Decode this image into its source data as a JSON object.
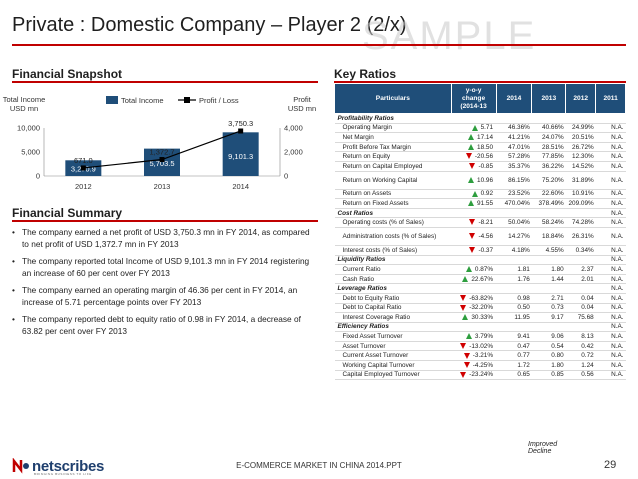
{
  "title": "Private : Domestic Company – Player 2 (2/x)",
  "watermark": "SAMPLE",
  "sections": {
    "snapshot": "Financial Snapshot",
    "summary": "Financial Summary",
    "ratios": "Key Ratios"
  },
  "chart_data": {
    "type": "bar",
    "categories": [
      "2012",
      "2013",
      "2014"
    ],
    "series": [
      {
        "name": "Total Income",
        "type": "bar",
        "axis": "left",
        "values": [
          3270.9,
          5703.5,
          9101.3
        ],
        "color": "#1f4e79"
      },
      {
        "name": "Profit / Loss",
        "type": "line",
        "axis": "right",
        "values": [
          671.0,
          1372.7,
          3750.3
        ],
        "color": "#000000"
      }
    ],
    "data_labels": {
      "bars": [
        "3,270.9",
        "5,703.5",
        "9,101.3"
      ],
      "line": [
        "671.0",
        "1,372.7",
        "3,750.3"
      ]
    },
    "y_left": {
      "label_line1": "Total Income",
      "label_line2": "USD mn",
      "ylim": [
        0,
        10000
      ],
      "ticks": [
        "0",
        "5,000",
        "10,000"
      ]
    },
    "y_right": {
      "label_line1": "Profit",
      "label_line2": "USD mn",
      "ylim": [
        0,
        4000
      ],
      "ticks": [
        "0",
        "2,000",
        "4,000"
      ]
    },
    "legend": "top-center",
    "grid": false
  },
  "summary_points": [
    "The company earned a net profit of USD 3,750.3 mn in FY 2014, as compared to net profit of USD 1,372.7 mn in FY 2013",
    "The company reported total Income of USD 9,101.3 mn in FY 2014 registering an increase of 60 per cent over FY 2013",
    "The company earned an operating margin of 46.36 per cent in FY 2014, an increase of 5.71 percentage points over FY 2013",
    "The company reported debt to equity ratio of 0.98 in FY 2014, a decrease of 63.82 per cent over FY 2013"
  ],
  "ratios": {
    "headers": {
      "particulars": "Particulars",
      "change_line1": "y-o-y",
      "change_line2": "change",
      "change_line3": "(2014-13",
      "y2014": "2014",
      "y2013": "2013",
      "y2012": "2012",
      "y2011": "2011"
    },
    "rows": [
      {
        "kind": "cat",
        "label": "Profitability Ratios",
        "y2011": ""
      },
      {
        "kind": "row",
        "label": "Operating Margin",
        "arrow": "up",
        "change": "5.71",
        "y2014": "46.36%",
        "y2013": "40.66%",
        "y2012": "24.99%",
        "y2011": "N.A."
      },
      {
        "kind": "row",
        "label": "Net Margin",
        "arrow": "up",
        "change": "17.14",
        "y2014": "41.21%",
        "y2013": "24.07%",
        "y2012": "20.51%",
        "y2011": "N.A."
      },
      {
        "kind": "row",
        "label": "Profit Before Tax Margin",
        "arrow": "up",
        "change": "18.50",
        "y2014": "47.01%",
        "y2013": "28.51%",
        "y2012": "26.72%",
        "y2011": "N.A."
      },
      {
        "kind": "row",
        "label": "Return on Equity",
        "arrow": "down",
        "change": "-20.56",
        "y2014": "57.28%",
        "y2013": "77.85%",
        "y2012": "12.30%",
        "y2011": "N.A."
      },
      {
        "kind": "row",
        "label": "Return on Capital Employed",
        "arrow": "down",
        "change": "-0.85",
        "y2014": "35.37%",
        "y2013": "36.22%",
        "y2012": "14.52%",
        "y2011": "N.A."
      },
      {
        "kind": "tall",
        "label": "Return on Working Capital",
        "arrow": "up",
        "change": "10.96",
        "y2014": "86.15%",
        "y2013": "75.20%",
        "y2012": "31.89%",
        "y2011": "N.A."
      },
      {
        "kind": "row",
        "label": "Return on Assets",
        "arrow": "up",
        "change": "0.92",
        "y2014": "23.52%",
        "y2013": "22.60%",
        "y2012": "10.91%",
        "y2011": "N.A."
      },
      {
        "kind": "row",
        "label": "Return on Fixed Assets",
        "arrow": "up",
        "change": "91.55",
        "y2014": "470.04%",
        "y2013": "378.49%",
        "y2012": "209.09%",
        "y2011": "N.A."
      },
      {
        "kind": "cat",
        "label": "Cost Ratios",
        "y2011": "N.A."
      },
      {
        "kind": "row",
        "label": "Operating costs (% of Sales)",
        "arrow": "down",
        "change": "-8.21",
        "y2014": "50.04%",
        "y2013": "58.24%",
        "y2012": "74.28%",
        "y2011": "N.A."
      },
      {
        "kind": "tall",
        "label": "Administration costs (% of Sales)",
        "arrow": "down",
        "change": "-4.56",
        "y2014": "14.27%",
        "y2013": "18.84%",
        "y2012": "26.31%",
        "y2011": "N.A."
      },
      {
        "kind": "row",
        "label": "Interest costs (% of Sales)",
        "arrow": "down",
        "change": "-0.37",
        "y2014": "4.18%",
        "y2013": "4.55%",
        "y2012": "0.34%",
        "y2011": "N.A."
      },
      {
        "kind": "cat",
        "label": "Liquidity Ratios",
        "y2011": "N.A."
      },
      {
        "kind": "row",
        "label": "Current Ratio",
        "arrow": "up",
        "change": "0.87%",
        "y2014": "1.81",
        "y2013": "1.80",
        "y2012": "2.37",
        "y2011": "N.A."
      },
      {
        "kind": "row",
        "label": "Cash Ratio",
        "arrow": "up",
        "change": "22.67%",
        "y2014": "1.76",
        "y2013": "1.44",
        "y2012": "2.01",
        "y2011": "N.A."
      },
      {
        "kind": "cat",
        "label": "Leverage Ratios",
        "y2011": "N.A."
      },
      {
        "kind": "row",
        "label": "Debt to Equity Ratio",
        "arrow": "down",
        "change": "-63.82%",
        "y2014": "0.98",
        "y2013": "2.71",
        "y2012": "0.04",
        "y2011": "N.A."
      },
      {
        "kind": "row",
        "label": "Debt to Capital Ratio",
        "arrow": "down",
        "change": "-32.20%",
        "y2014": "0.50",
        "y2013": "0.73",
        "y2012": "0.04",
        "y2011": "N.A."
      },
      {
        "kind": "row",
        "label": "Interest Coverage Ratio",
        "arrow": "up",
        "change": "30.33%",
        "y2014": "11.95",
        "y2013": "9.17",
        "y2012": "75.68",
        "y2011": "N.A."
      },
      {
        "kind": "cat",
        "label": "Efficiency Ratios",
        "y2011": "N.A."
      },
      {
        "kind": "row",
        "label": "Fixed Asset Turnover",
        "arrow": "up",
        "change": "3.79%",
        "y2014": "9.41",
        "y2013": "9.06",
        "y2012": "8.13",
        "y2011": "N.A."
      },
      {
        "kind": "row",
        "label": "Asset Turnover",
        "arrow": "down",
        "change": "-13.02%",
        "y2014": "0.47",
        "y2013": "0.54",
        "y2012": "0.42",
        "y2011": "N.A."
      },
      {
        "kind": "row",
        "label": "Current Asset Turnover",
        "arrow": "down",
        "change": "-3.21%",
        "y2014": "0.77",
        "y2013": "0.80",
        "y2012": "0.72",
        "y2011": "N.A."
      },
      {
        "kind": "row",
        "label": "Working Capital Turnover",
        "arrow": "down",
        "change": "-4.25%",
        "y2014": "1.72",
        "y2013": "1.80",
        "y2012": "1.24",
        "y2011": "N.A."
      },
      {
        "kind": "row",
        "label": "Capital Employed Turnover",
        "arrow": "down",
        "change": "-23.24%",
        "y2014": "0.65",
        "y2013": "0.85",
        "y2012": "0.56",
        "y2011": "N.A."
      }
    ],
    "legend": {
      "improved": "Improved",
      "decline": "Decline"
    }
  },
  "footer": {
    "logo": "netscribes",
    "tagline": "BRINGING BUSINESS TO LIFE",
    "center": "E-COMMERCE MARKET IN CHINA 2014.PPT",
    "page": "29"
  },
  "colors": {
    "accent": "#c00000",
    "header_blue": "#1f4e79",
    "bar_blue": "#1f4e79",
    "improved": "#2e9e3f",
    "decline": "#d00000"
  }
}
